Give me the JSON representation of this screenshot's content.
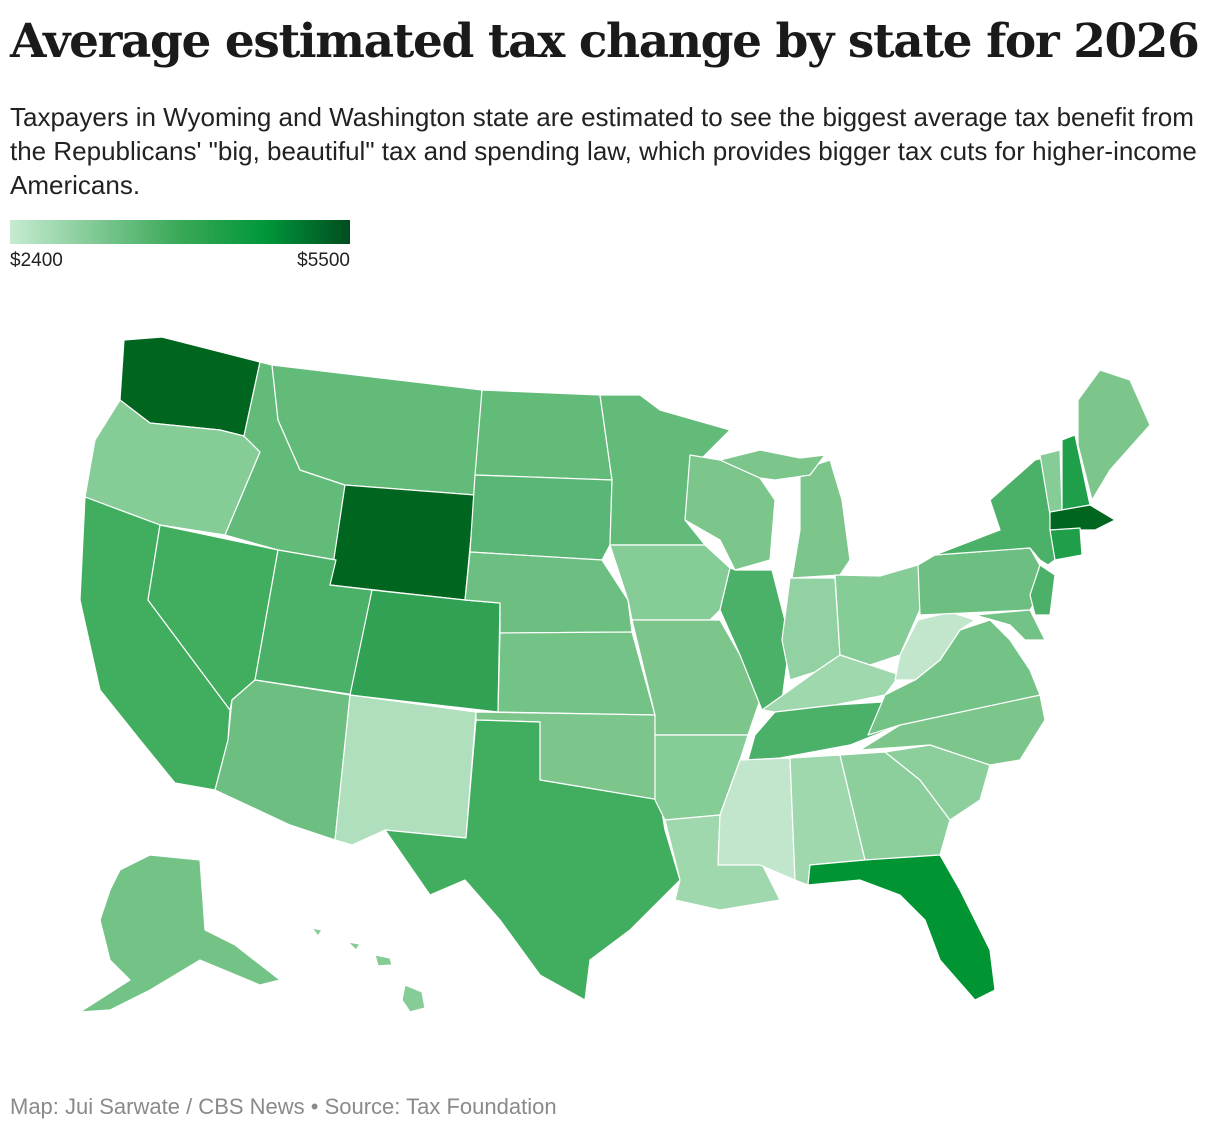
{
  "title": "Average estimated tax change by state for 2026",
  "subtitle": "Taxpayers in Wyoming and Washington state are estimated to see the biggest average tax benefit from the Republicans' \"big, beautiful\" tax and spending law, which provides bigger tax cuts for higher-income Americans.",
  "legend": {
    "min_label": "$2400",
    "max_label": "$5500",
    "colors": [
      "#c7ebd1",
      "#7fc994",
      "#3aa857",
      "#00973a",
      "#004d1f"
    ]
  },
  "credit": "Map: Jui Sarwate / CBS News • Source: Tax Foundation",
  "map_data": {
    "type": "choropleth",
    "value_range": [
      2400,
      5500
    ],
    "states": [
      {
        "name": "Washington",
        "color": "#00661f"
      },
      {
        "name": "Oregon",
        "color": "#85cc97"
      },
      {
        "name": "California",
        "color": "#40ad5f"
      },
      {
        "name": "Nevada",
        "color": "#40ad5f"
      },
      {
        "name": "Idaho",
        "color": "#62bb79"
      },
      {
        "name": "Montana",
        "color": "#62bb79"
      },
      {
        "name": "Wyoming",
        "color": "#00661f"
      },
      {
        "name": "Utah",
        "color": "#4cb168"
      },
      {
        "name": "Arizona",
        "color": "#6cbf80"
      },
      {
        "name": "Colorado",
        "color": "#31a253"
      },
      {
        "name": "New Mexico",
        "color": "#b0dfbd"
      },
      {
        "name": "North Dakota",
        "color": "#62bb79"
      },
      {
        "name": "South Dakota",
        "color": "#5ab674"
      },
      {
        "name": "Nebraska",
        "color": "#6cbf80"
      },
      {
        "name": "Kansas",
        "color": "#72c385"
      },
      {
        "name": "Oklahoma",
        "color": "#7cc68c"
      },
      {
        "name": "Texas",
        "color": "#40ad5f"
      },
      {
        "name": "Minnesota",
        "color": "#62bb79"
      },
      {
        "name": "Iowa",
        "color": "#85cc97"
      },
      {
        "name": "Missouri",
        "color": "#7cc68c"
      },
      {
        "name": "Arkansas",
        "color": "#85cc97"
      },
      {
        "name": "Louisiana",
        "color": "#a0d8ae"
      },
      {
        "name": "Wisconsin",
        "color": "#7cc68c"
      },
      {
        "name": "Illinois",
        "color": "#4cb168"
      },
      {
        "name": "Michigan",
        "color": "#7cc68c"
      },
      {
        "name": "Indiana",
        "color": "#92d1a1"
      },
      {
        "name": "Ohio",
        "color": "#85cc97"
      },
      {
        "name": "Kentucky",
        "color": "#a0d8ae"
      },
      {
        "name": "Tennessee",
        "color": "#4cb168"
      },
      {
        "name": "Mississippi",
        "color": "#c1e6cb"
      },
      {
        "name": "Alabama",
        "color": "#a0d8ae"
      },
      {
        "name": "Georgia",
        "color": "#8ccf9c"
      },
      {
        "name": "Florida",
        "color": "#009432"
      },
      {
        "name": "South Carolina",
        "color": "#8ccf9c"
      },
      {
        "name": "North Carolina",
        "color": "#7cc68c"
      },
      {
        "name": "Virginia",
        "color": "#72c385"
      },
      {
        "name": "West Virginia",
        "color": "#c1e6cb"
      },
      {
        "name": "Pennsylvania",
        "color": "#6cbf80"
      },
      {
        "name": "New York",
        "color": "#4cb168"
      },
      {
        "name": "Vermont",
        "color": "#85cc97"
      },
      {
        "name": "New Hampshire",
        "color": "#1f9f49"
      },
      {
        "name": "Maine",
        "color": "#7cc68c"
      },
      {
        "name": "Massachusetts",
        "color": "#00661f"
      },
      {
        "name": "Connecticut",
        "color": "#1f9f49"
      },
      {
        "name": "New Jersey",
        "color": "#4cb168"
      },
      {
        "name": "Maryland",
        "color": "#72c385"
      },
      {
        "name": "Alaska",
        "color": "#72c385"
      },
      {
        "name": "Hawaii",
        "color": "#85cc97"
      }
    ]
  }
}
